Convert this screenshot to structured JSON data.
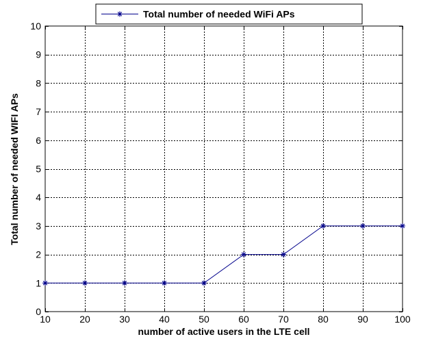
{
  "chart_data": {
    "type": "line",
    "title": "",
    "xlabel": "number of active users in the LTE cell",
    "ylabel": "Total number of needed WIFI APs",
    "x": [
      10,
      20,
      30,
      40,
      50,
      60,
      70,
      80,
      90,
      100
    ],
    "series": [
      {
        "name": "Total number of needed WiFi APs",
        "values": [
          1,
          1,
          1,
          1,
          1,
          2,
          2,
          3,
          3,
          3
        ],
        "color": "#00008b",
        "marker": "star"
      }
    ],
    "xlim": [
      10,
      100
    ],
    "ylim": [
      0,
      10
    ],
    "xticks": [
      10,
      20,
      30,
      40,
      50,
      60,
      70,
      80,
      90,
      100
    ],
    "yticks": [
      0,
      1,
      2,
      3,
      4,
      5,
      6,
      7,
      8,
      9,
      10
    ],
    "grid": true,
    "grid_style": "dotted",
    "legend_position": "top-center"
  }
}
